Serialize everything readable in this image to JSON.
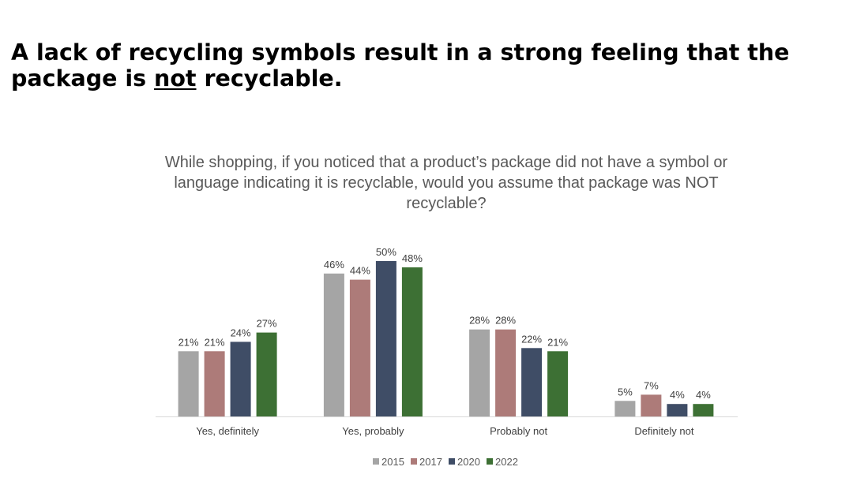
{
  "slide": {
    "title_part1": "A lack of recycling symbols result in a strong feeling that the package is ",
    "title_emphasis": "not",
    "title_part2": " recyclable."
  },
  "chart_data": {
    "type": "bar",
    "title": "While shopping, if you noticed that a product’s package did not have a symbol or language indicating it is recyclable, would you assume that package was NOT recyclable?",
    "categories": [
      "Yes, definitely",
      "Yes, probably",
      "Probably not",
      "Definitely not"
    ],
    "series": [
      {
        "name": "2015",
        "color": "#a5a5a5",
        "values": [
          21,
          46,
          28,
          5
        ]
      },
      {
        "name": "2017",
        "color": "#ad7b79",
        "values": [
          21,
          44,
          28,
          7
        ]
      },
      {
        "name": "2020",
        "color": "#3f4d66",
        "values": [
          24,
          50,
          22,
          4
        ]
      },
      {
        "name": "2022",
        "color": "#3d7034",
        "values": [
          27,
          48,
          21,
          4
        ]
      }
    ],
    "value_suffix": "%",
    "ylim": [
      0,
      55
    ],
    "grid": false,
    "legend_position": "bottom"
  }
}
